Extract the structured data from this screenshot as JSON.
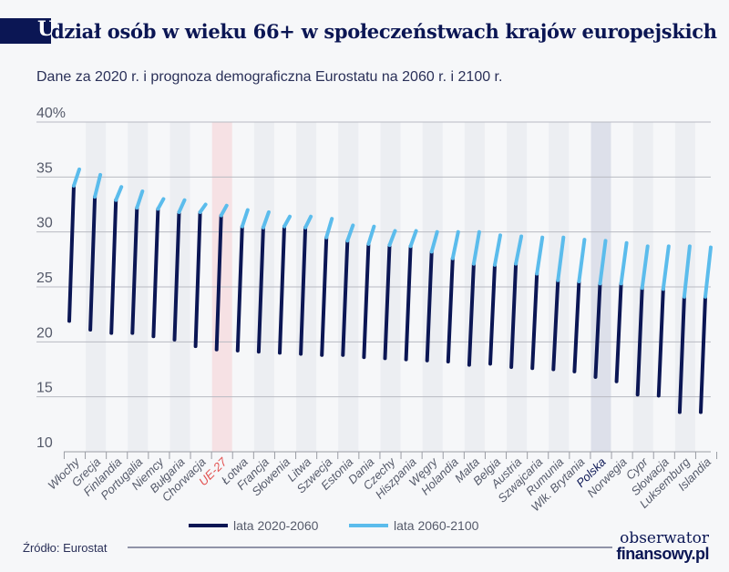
{
  "header": {
    "title_first_letter": "U",
    "title_rest": "dział osób w wieku 66+ w społeczeństwach krajów europejskich",
    "subtitle": "Dane za 2020 r. i prognoza demograficzna Eurostatu na 2060 r. i 2100 r."
  },
  "footer": {
    "source": "Źródło: Eurostat",
    "logo_line1": "obserwator",
    "logo_line2": "finansowy.pl"
  },
  "colors": {
    "series_2020_2060": "#0b1654",
    "series_2060_2100": "#5bbcec",
    "highlight_eu": "#f6e1e4",
    "highlight_poland": "#dde0ea",
    "band": "#eceef2",
    "eu_label": "#e2504f",
    "poland_label": "#0b1654"
  },
  "chart_data": {
    "type": "range-line",
    "title": "Udział osób w wieku 66+ w społeczeństwach krajów europejskich",
    "subtitle": "Dane za 2020 r. i prognoza demograficzna Eurostatu na 2060 r. i 2100 r.",
    "ylim": [
      10,
      40
    ],
    "yticks": [
      "10",
      "15",
      "20",
      "25",
      "30",
      "35",
      "40%"
    ],
    "ytick_values": [
      10,
      15,
      20,
      25,
      30,
      35,
      40
    ],
    "grid": true,
    "legend_position": "bottom",
    "categories": [
      "Włochy",
      "Grecja",
      "Finlandia",
      "Portugalia",
      "Niemcy",
      "Bułgaria",
      "Chorwacja",
      "UE-27",
      "Łotwa",
      "Francja",
      "Słowenia",
      "Litwa",
      "Szwecja",
      "Estonia",
      "Dania",
      "Czechy",
      "Hiszpania",
      "Węgry",
      "Holandia",
      "Malta",
      "Belgia",
      "Austria",
      "Szwajcaria",
      "Rumunia",
      "Wlk. Brytania",
      "Polska",
      "Norwegia",
      "Cypr",
      "Słowacja",
      "Luksemburg",
      "Islandia"
    ],
    "highlighted": {
      "UE-27": "eu",
      "Polska": "poland"
    },
    "values_2020": [
      21.9,
      21.1,
      20.8,
      20.8,
      20.5,
      20.2,
      19.6,
      19.3,
      19.2,
      19.1,
      19.0,
      18.9,
      18.8,
      18.8,
      18.6,
      18.5,
      18.4,
      18.3,
      18.2,
      17.9,
      18.0,
      17.7,
      17.6,
      17.5,
      17.3,
      16.8,
      16.4,
      15.2,
      15.1,
      13.6,
      13.6
    ],
    "values_2060": [
      34.2,
      33.2,
      32.9,
      32.2,
      32.1,
      31.8,
      31.8,
      31.5,
      30.5,
      30.4,
      30.5,
      30.4,
      29.5,
      29.2,
      28.9,
      28.8,
      28.7,
      28.2,
      27.6,
      27.1,
      27.0,
      27.1,
      26.2,
      25.6,
      25.5,
      25.3,
      25.3,
      24.9,
      24.8,
      24.1,
      24.1
    ],
    "values_2100": [
      35.7,
      35.2,
      34.1,
      33.7,
      33.0,
      32.9,
      32.5,
      32.4,
      32.0,
      31.8,
      31.4,
      31.4,
      31.2,
      30.6,
      30.5,
      30.1,
      30.1,
      30.0,
      30.0,
      30.0,
      29.7,
      29.6,
      29.5,
      29.5,
      29.3,
      29.2,
      29.0,
      28.7,
      28.7,
      28.7,
      28.6
    ],
    "series": [
      {
        "name": "lata 2020-2060"
      },
      {
        "name": "lata 2060-2100"
      }
    ]
  }
}
